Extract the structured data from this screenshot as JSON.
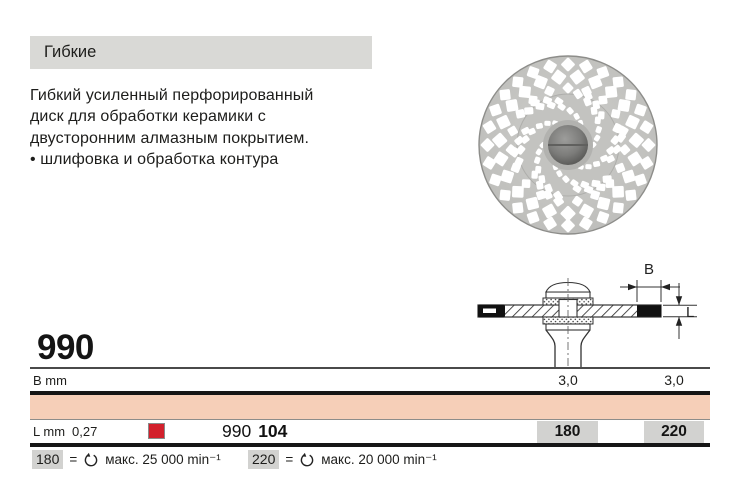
{
  "header": {
    "category": "Гибкие"
  },
  "description": {
    "lines": [
      "Гибкий усиленный перфорированный",
      "диск для обработки керамики с",
      "двусторонним алмазным покрытием.",
      "• шлифовка и обработка контура"
    ]
  },
  "product": {
    "number": "990"
  },
  "drawing": {
    "dim_b": "B",
    "dim_l": "L"
  },
  "table": {
    "b_label": "B mm",
    "b_values": [
      "3,0",
      "3,0"
    ],
    "l_label": "L mm",
    "l_value": "0,27",
    "order_prefix": "990",
    "order_code": "104",
    "codes": [
      "180",
      "220"
    ]
  },
  "footnotes": [
    {
      "code": "180",
      "sep": "=",
      "text": "макс. 25 000 min⁻¹"
    },
    {
      "code": "220",
      "sep": "=",
      "text": "макс. 20 000 min⁻¹"
    }
  ],
  "colors": {
    "salmon": "#f6cfb8",
    "red": "#d2202c",
    "gray_bar": "#d9d9d6",
    "gray_cell": "#d2d2d0"
  }
}
